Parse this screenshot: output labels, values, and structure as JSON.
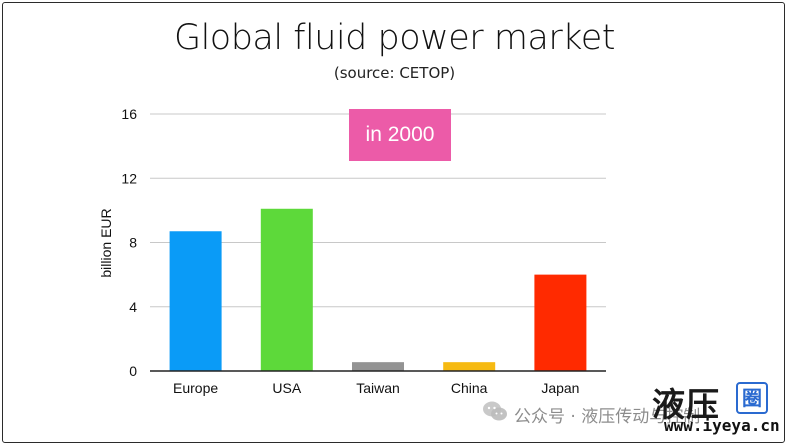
{
  "chart_data": {
    "type": "bar",
    "title": "Global fluid power market",
    "subtitle": "(source: CETOP)",
    "annotation": "in 2000",
    "annotation_color": "#EC5BA8",
    "ylabel": "billion EUR",
    "xlabel": "",
    "ylim": [
      0,
      16
    ],
    "yticks": [
      "0",
      "4",
      "8",
      "12",
      "16"
    ],
    "grid": true,
    "categories": [
      "Europe",
      "USA",
      "Taiwan",
      "China",
      "Japan"
    ],
    "values": [
      8.7,
      10.1,
      0.55,
      0.55,
      6.0
    ],
    "colors": [
      "#0A9BF7",
      "#5DD93A",
      "#939393",
      "#F6BA12",
      "#FF2A00"
    ]
  },
  "watermark": {
    "account": "公众号 · 液压传动与控制",
    "brand": "液压",
    "brand_box": "圈",
    "url": "www.iyeya.cn",
    "icon": "wechat-icon"
  }
}
